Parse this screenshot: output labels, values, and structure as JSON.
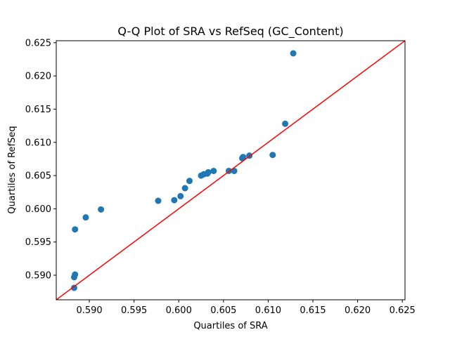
{
  "chart_data": {
    "type": "scatter",
    "title": "Q-Q Plot of SRA vs RefSeq (GC_Content)",
    "xlabel": "Quartiles of SRA",
    "ylabel": "Quartiles of RefSeq",
    "xlim": [
      0.5863,
      0.6253
    ],
    "ylim": [
      0.5863,
      0.6253
    ],
    "xticks": [
      "0.590",
      "0.595",
      "0.600",
      "0.605",
      "0.610",
      "0.615",
      "0.620",
      "0.625"
    ],
    "yticks": [
      "0.590",
      "0.595",
      "0.600",
      "0.605",
      "0.610",
      "0.615",
      "0.620",
      "0.625"
    ],
    "grid": false,
    "point_color": "#1f77b4",
    "reference_line": {
      "from": [
        0.5863,
        0.5863
      ],
      "to": [
        0.6253,
        0.6253
      ],
      "color": "#ff0000"
    },
    "points": [
      [
        0.5883,
        0.5881
      ],
      [
        0.5883,
        0.5897
      ],
      [
        0.5884,
        0.5901
      ],
      [
        0.5884,
        0.5969
      ],
      [
        0.5896,
        0.5987
      ],
      [
        0.5913,
        0.5999
      ],
      [
        0.5977,
        0.6012
      ],
      [
        0.5995,
        0.6013
      ],
      [
        0.6002,
        0.6019
      ],
      [
        0.6007,
        0.6031
      ],
      [
        0.6012,
        0.6042
      ],
      [
        0.6025,
        0.605
      ],
      [
        0.6028,
        0.6052
      ],
      [
        0.6032,
        0.6053
      ],
      [
        0.6033,
        0.6055
      ],
      [
        0.6039,
        0.6057
      ],
      [
        0.6056,
        0.6057
      ],
      [
        0.6062,
        0.6057
      ],
      [
        0.6071,
        0.6076
      ],
      [
        0.6072,
        0.6078
      ],
      [
        0.6079,
        0.608
      ],
      [
        0.6105,
        0.6081
      ],
      [
        0.6119,
        0.6128
      ],
      [
        0.6128,
        0.6234
      ]
    ]
  }
}
